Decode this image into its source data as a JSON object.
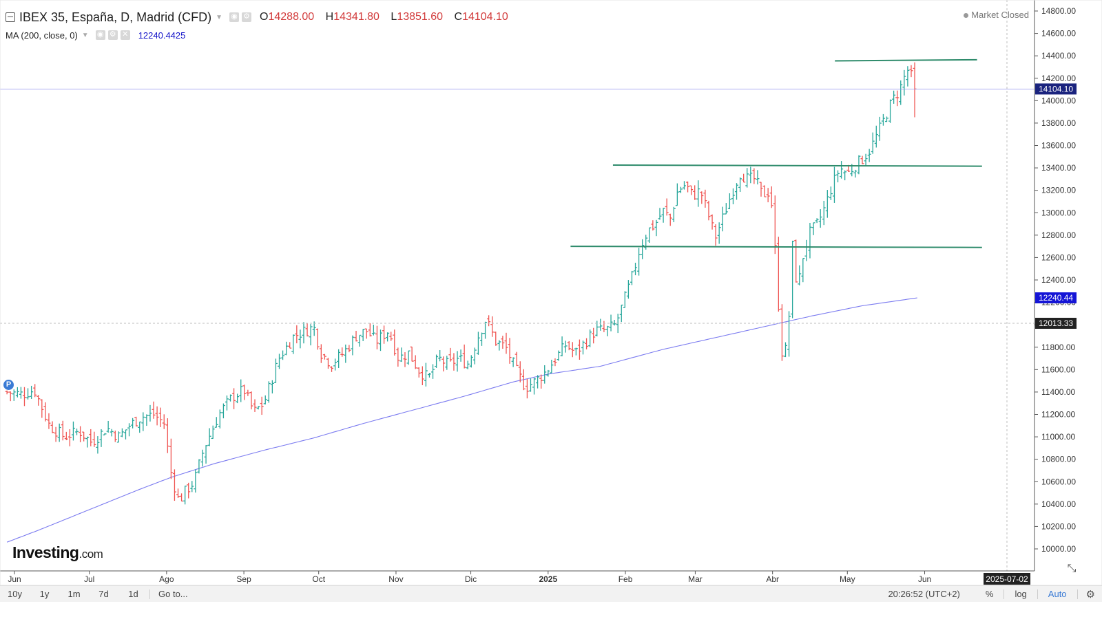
{
  "header": {
    "symbol_title": "IBEX 35, España, D, Madrid (CFD)",
    "ohlc": [
      {
        "key": "O",
        "value": "14288.00"
      },
      {
        "key": "H",
        "value": "14341.80"
      },
      {
        "key": "L",
        "value": "13851.60"
      },
      {
        "key": "C",
        "value": "14104.10"
      }
    ],
    "ma_title": "MA (200, close, 0)",
    "ma_value": "12240.4425",
    "market_status": "Market Closed"
  },
  "watermark": {
    "brand": "Investing",
    "domain": ".com"
  },
  "event_badge": "P",
  "bottom_bar": {
    "ranges": [
      "10y",
      "1y",
      "1m",
      "7d",
      "1d"
    ],
    "goto": "Go to...",
    "clock": "20:26:52 (UTC+2)",
    "percent": "%",
    "log": "log",
    "auto": "Auto"
  },
  "colors": {
    "up": "#26a69a",
    "down": "#ef5350",
    "ma_line": "#7b7bf0",
    "trendline": "#2e8b6b",
    "price_label": "#1a237e",
    "ma_label": "#1515d6",
    "crosshair_label": "#222222"
  },
  "chart_data": {
    "type": "ohlc",
    "title": "IBEX 35, España, D, Madrid (CFD)",
    "ylim": [
      10000,
      14800
    ],
    "y_ticks": [
      "14800.00",
      "14600.00",
      "14400.00",
      "14200.00",
      "14000.00",
      "13800.00",
      "13600.00",
      "13400.00",
      "13200.00",
      "13000.00",
      "12800.00",
      "12600.00",
      "12400.00",
      "12200.00",
      "12000.00",
      "11800.00",
      "11600.00",
      "11400.00",
      "11200.00",
      "11000.00",
      "10800.00",
      "10600.00",
      "10400.00",
      "10200.00",
      "10000.00"
    ],
    "x_ticks": [
      {
        "label": "Jun",
        "day": 0
      },
      {
        "label": "Jul",
        "day": 30
      },
      {
        "label": "Ago",
        "day": 61
      },
      {
        "label": "Sep",
        "day": 92
      },
      {
        "label": "Oct",
        "day": 122
      },
      {
        "label": "Nov",
        "day": 153
      },
      {
        "label": "Dic",
        "day": 183
      },
      {
        "label": "2025",
        "day": 214
      },
      {
        "label": "Feb",
        "day": 245
      },
      {
        "label": "Mar",
        "day": 273
      },
      {
        "label": "Abr",
        "day": 304
      },
      {
        "label": "May",
        "day": 334
      },
      {
        "label": "Jun",
        "day": 365
      }
    ],
    "x_day_max": 405,
    "current_price": {
      "value": 14104.1,
      "label": "14104.10"
    },
    "ma_value": {
      "value": 12240.44,
      "label": "12240.44"
    },
    "crosshair": {
      "value": 12013.33,
      "label": "12013.33",
      "day": 398,
      "date_label": "2025-07-02"
    },
    "close_anchors": [
      [
        -3,
        11400
      ],
      [
        3,
        11380
      ],
      [
        8,
        11420
      ],
      [
        14,
        11100
      ],
      [
        20,
        11000
      ],
      [
        26,
        11050
      ],
      [
        31,
        10950
      ],
      [
        37,
        11080
      ],
      [
        42,
        11000
      ],
      [
        46,
        11100
      ],
      [
        51,
        11180
      ],
      [
        56,
        11200
      ],
      [
        60,
        11120
      ],
      [
        63,
        10650
      ],
      [
        66,
        10420
      ],
      [
        68,
        10500
      ],
      [
        72,
        10600
      ],
      [
        76,
        10900
      ],
      [
        82,
        11200
      ],
      [
        87,
        11350
      ],
      [
        92,
        11420
      ],
      [
        96,
        11220
      ],
      [
        100,
        11300
      ],
      [
        106,
        11700
      ],
      [
        112,
        11900
      ],
      [
        117,
        11950
      ],
      [
        120,
        11980
      ],
      [
        123,
        11750
      ],
      [
        127,
        11650
      ],
      [
        132,
        11750
      ],
      [
        137,
        11900
      ],
      [
        141,
        11950
      ],
      [
        145,
        11850
      ],
      [
        150,
        11950
      ],
      [
        154,
        11700
      ],
      [
        158,
        11750
      ],
      [
        162,
        11600
      ],
      [
        166,
        11520
      ],
      [
        170,
        11700
      ],
      [
        174,
        11640
      ],
      [
        178,
        11700
      ],
      [
        182,
        11650
      ],
      [
        186,
        11900
      ],
      [
        189,
        12050
      ],
      [
        193,
        11850
      ],
      [
        197,
        11800
      ],
      [
        201,
        11600
      ],
      [
        205,
        11440
      ],
      [
        209,
        11500
      ],
      [
        213,
        11580
      ],
      [
        217,
        11700
      ],
      [
        221,
        11820
      ],
      [
        225,
        11750
      ],
      [
        229,
        11850
      ],
      [
        233,
        11950
      ],
      [
        237,
        11950
      ],
      [
        241,
        12000
      ],
      [
        245,
        12250
      ],
      [
        248,
        12450
      ],
      [
        251,
        12700
      ],
      [
        254,
        12840
      ],
      [
        257,
        12900
      ],
      [
        260,
        13020
      ],
      [
        263,
        12950
      ],
      [
        266,
        13200
      ],
      [
        269,
        13250
      ],
      [
        272,
        13150
      ],
      [
        275,
        13200
      ],
      [
        278,
        13000
      ],
      [
        281,
        12780
      ],
      [
        284,
        12950
      ],
      [
        288,
        13200
      ],
      [
        291,
        13350
      ],
      [
        294,
        13300
      ],
      [
        297,
        13300
      ],
      [
        300,
        13150
      ],
      [
        302,
        13200
      ],
      [
        304,
        13050
      ],
      [
        306,
        12300
      ],
      [
        308,
        11700
      ],
      [
        310,
        11820
      ],
      [
        312,
        12700
      ],
      [
        314,
        12300
      ],
      [
        316,
        12600
      ],
      [
        319,
        12820
      ],
      [
        322,
        12900
      ],
      [
        325,
        13050
      ],
      [
        328,
        13250
      ],
      [
        331,
        13400
      ],
      [
        334,
        13350
      ],
      [
        337,
        13420
      ],
      [
        340,
        13480
      ],
      [
        343,
        13560
      ],
      [
        346,
        13700
      ],
      [
        349,
        13850
      ],
      [
        352,
        14000
      ],
      [
        355,
        14100
      ],
      [
        358,
        14280
      ],
      [
        360,
        14200
      ],
      [
        361,
        14104
      ]
    ],
    "ma_anchors": [
      [
        -3,
        10060
      ],
      [
        10,
        10170
      ],
      [
        20,
        10260
      ],
      [
        30,
        10350
      ],
      [
        40,
        10440
      ],
      [
        50,
        10530
      ],
      [
        63,
        10640
      ],
      [
        80,
        10760
      ],
      [
        100,
        10880
      ],
      [
        120,
        10990
      ],
      [
        140,
        11120
      ],
      [
        160,
        11240
      ],
      [
        180,
        11360
      ],
      [
        200,
        11490
      ],
      [
        214,
        11560
      ],
      [
        235,
        11630
      ],
      [
        260,
        11780
      ],
      [
        280,
        11880
      ],
      [
        300,
        11980
      ],
      [
        320,
        12080
      ],
      [
        340,
        12170
      ],
      [
        362,
        12240
      ]
    ],
    "trendlines": [
      {
        "day1": 329,
        "value1": 14355,
        "day2": 386,
        "value2": 14365
      },
      {
        "day1": 240,
        "value1": 13425,
        "day2": 388,
        "value2": 13415
      },
      {
        "day1": 223,
        "value1": 12700,
        "day2": 388,
        "value2": 12690
      }
    ]
  }
}
